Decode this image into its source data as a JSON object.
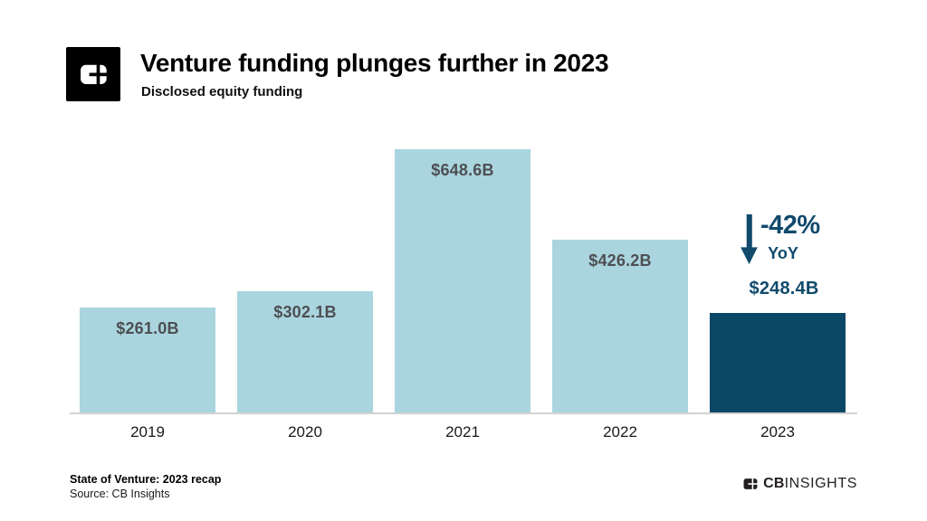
{
  "header": {
    "title": "Venture funding plunges further in 2023",
    "subtitle": "Disclosed equity funding",
    "logo": "cb-insights-logomark"
  },
  "chart_data": {
    "type": "bar",
    "title": "Venture funding plunges further in 2023",
    "subtitle": "Disclosed equity funding",
    "unit": "USD billions",
    "categories": [
      "2019",
      "2020",
      "2021",
      "2022",
      "2023"
    ],
    "values": [
      261.0,
      302.1,
      648.6,
      426.2,
      248.4
    ],
    "labels": [
      "$261.0B",
      "$302.1B",
      "$648.6B",
      "$426.2B",
      "$248.4B"
    ],
    "highlight_index": 4,
    "ylim": [
      0,
      700
    ],
    "grid": false,
    "legend": "none",
    "annotation": {
      "delta": "-42%",
      "period": "YoY",
      "value_label": "$248.4B",
      "arrow": "down"
    },
    "colors": {
      "bar": "#aad5de",
      "highlight_bar": "#0b4866",
      "annotation": "#114a6c",
      "label": "#4d4f53",
      "axis_line": "#d2d2d2"
    }
  },
  "footer": {
    "report": "State of Venture: 2023 recap",
    "source": "Source: CB Insights",
    "brand_bold": "CB",
    "brand_light": "INSIGHTS"
  }
}
